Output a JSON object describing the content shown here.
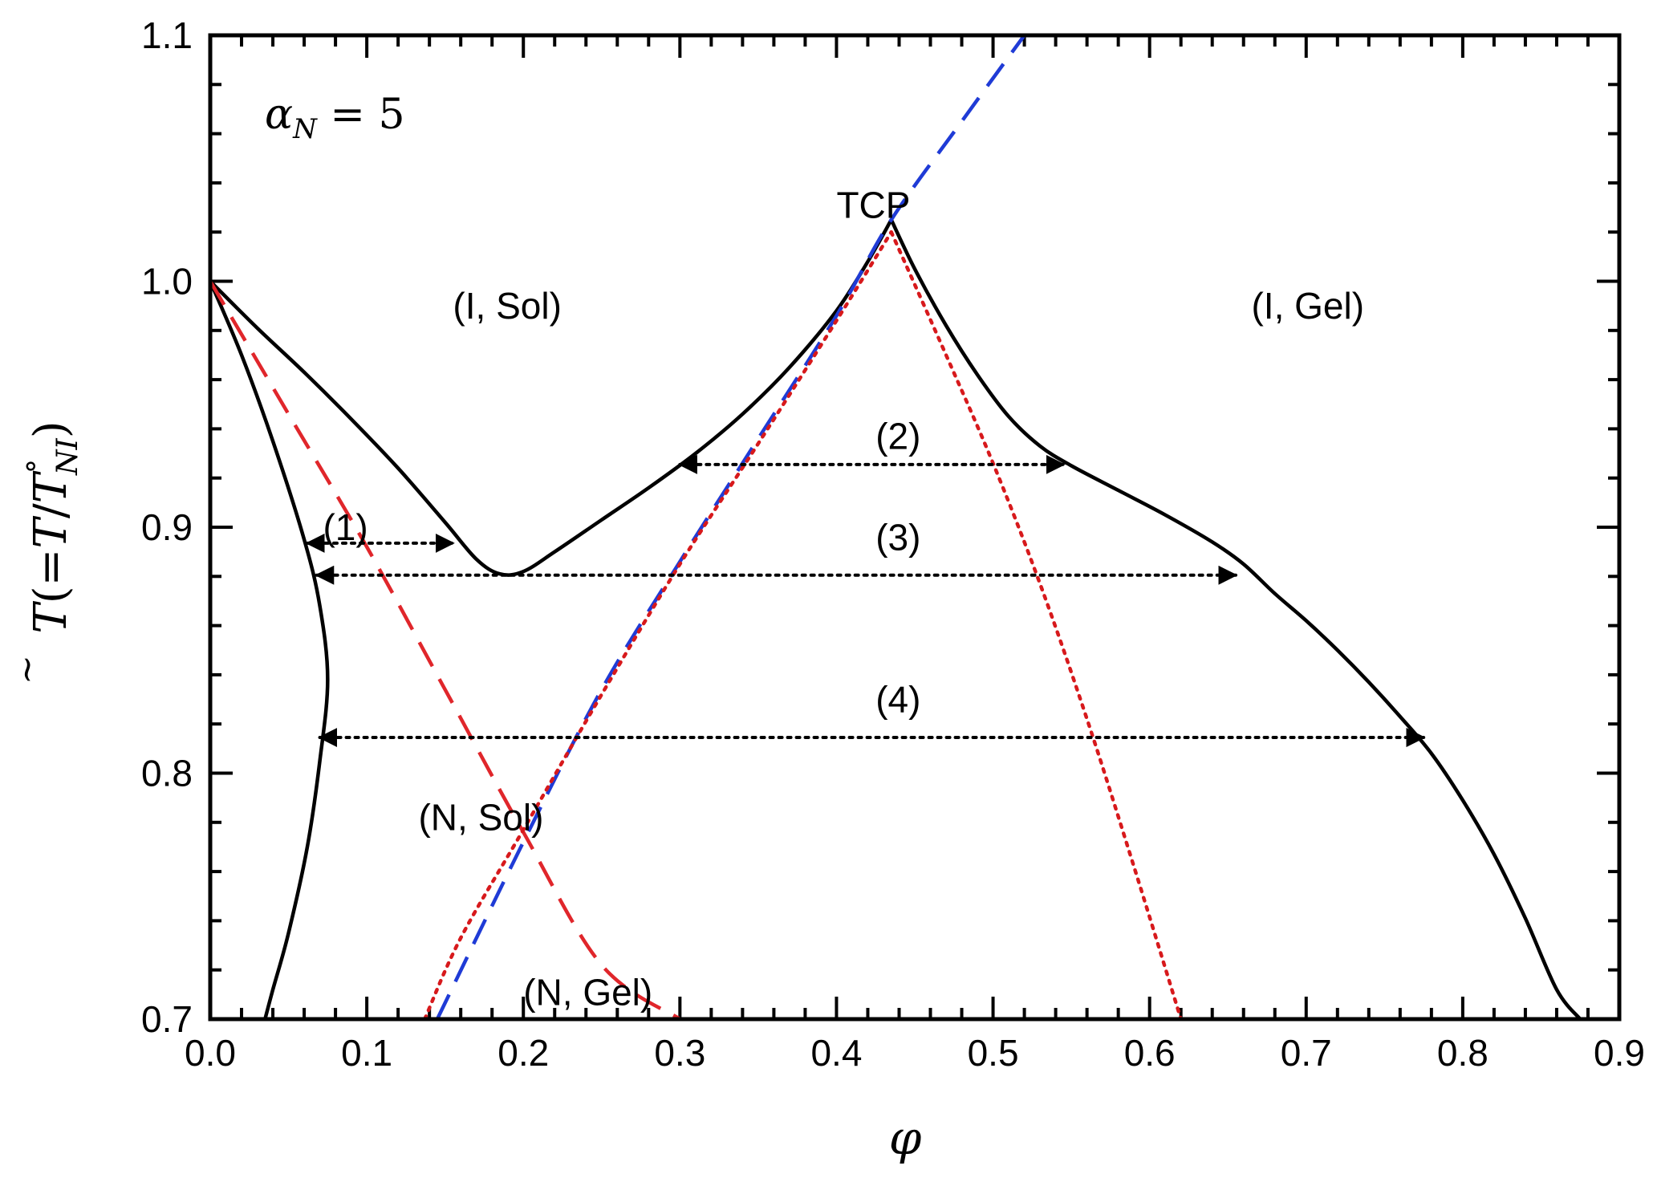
{
  "chart_data": {
    "type": "line",
    "title": "",
    "xlabel": "φ",
    "ylabel_parts": {
      "T": "T",
      "tilde": "~",
      "open": "(=",
      "T2": "T",
      "slash": "/",
      "T3": "T",
      "sup": "°",
      "sub": "NI",
      "close": ")"
    },
    "xlim": [
      0.0,
      0.9
    ],
    "ylim": [
      0.7,
      1.1
    ],
    "x_ticks": [
      "0.0",
      "0.1",
      "0.2",
      "0.3",
      "0.4",
      "0.5",
      "0.6",
      "0.7",
      "0.8",
      "0.9"
    ],
    "x_tick_values": [
      0.0,
      0.1,
      0.2,
      0.3,
      0.4,
      0.5,
      0.6,
      0.7,
      0.8,
      0.9
    ],
    "y_ticks": [
      "0.7",
      "0.8",
      "0.9",
      "1.0",
      "1.1"
    ],
    "y_tick_values": [
      0.7,
      0.8,
      0.9,
      1.0,
      1.1
    ],
    "parameter": {
      "symbol": "α",
      "sub": "N",
      "eq": " = 5"
    },
    "colors": {
      "axis": "#000000",
      "solid": "#000000",
      "red_dash": "#e0262b",
      "blue_dash": "#1f3bd6",
      "red_dot": "#d7191c",
      "arrow": "#000000"
    },
    "series": [
      {
        "name": "binodal-left-sol-branch",
        "style": "solid",
        "x": [
          0.0,
          0.02,
          0.04,
          0.06,
          0.07,
          0.075,
          0.07,
          0.062,
          0.05,
          0.04,
          0.035
        ],
        "y": [
          1.0,
          0.97,
          0.935,
          0.895,
          0.868,
          0.838,
          0.805,
          0.77,
          0.735,
          0.712,
          0.7
        ]
      },
      {
        "name": "binodal-isotropic-left",
        "style": "solid",
        "x": [
          0.0,
          0.03,
          0.06,
          0.09,
          0.12,
          0.15,
          0.17,
          0.185,
          0.2,
          0.22,
          0.25,
          0.28,
          0.31,
          0.34,
          0.37,
          0.4,
          0.42,
          0.435
        ],
        "y": [
          1.0,
          0.981,
          0.963,
          0.944,
          0.924,
          0.902,
          0.887,
          0.881,
          0.882,
          0.89,
          0.903,
          0.916,
          0.93,
          0.946,
          0.965,
          0.988,
          1.008,
          1.025
        ]
      },
      {
        "name": "binodal-isotropic-right",
        "style": "solid",
        "x": [
          0.435,
          0.45,
          0.47,
          0.49,
          0.51,
          0.53,
          0.55,
          0.58,
          0.61,
          0.64,
          0.66,
          0.68,
          0.7,
          0.72,
          0.74,
          0.76,
          0.78,
          0.8,
          0.82,
          0.84,
          0.86,
          0.875
        ],
        "y": [
          1.025,
          1.005,
          0.982,
          0.962,
          0.945,
          0.933,
          0.925,
          0.915,
          0.905,
          0.894,
          0.885,
          0.873,
          0.862,
          0.85,
          0.837,
          0.823,
          0.808,
          0.789,
          0.767,
          0.741,
          0.712,
          0.7
        ]
      },
      {
        "name": "red-dashed-spinodal",
        "style": "dashed-red",
        "x": [
          0.0,
          0.05,
          0.1,
          0.15,
          0.2,
          0.25,
          0.3
        ],
        "y": [
          1.0,
          0.946,
          0.892,
          0.834,
          0.776,
          0.722,
          0.7
        ]
      },
      {
        "name": "blue-dashed-line",
        "style": "dashed-blue",
        "x": [
          0.145,
          0.2,
          0.25,
          0.3,
          0.35,
          0.4,
          0.435,
          0.48,
          0.52
        ],
        "y": [
          0.7,
          0.772,
          0.834,
          0.886,
          0.936,
          0.986,
          1.025,
          1.065,
          1.1
        ]
      },
      {
        "name": "red-dotted-spinodal-left",
        "style": "dotted-red",
        "x": [
          0.137,
          0.16,
          0.2,
          0.25,
          0.3,
          0.35,
          0.4,
          0.435
        ],
        "y": [
          0.7,
          0.733,
          0.777,
          0.832,
          0.885,
          0.934,
          0.984,
          1.02
        ]
      },
      {
        "name": "red-dotted-spinodal-right",
        "style": "dotted-red",
        "x": [
          0.435,
          0.47,
          0.5,
          0.53,
          0.56,
          0.59,
          0.62
        ],
        "y": [
          1.02,
          0.97,
          0.926,
          0.877,
          0.822,
          0.762,
          0.7
        ]
      }
    ],
    "tie_lines": [
      {
        "label": "(1)",
        "x1": 0.062,
        "x2": 0.155,
        "y": 0.8935,
        "label_x": 0.072,
        "label_y": 0.9
      },
      {
        "label": "(2)",
        "x1": 0.3,
        "x2": 0.545,
        "y": 0.9255,
        "label_x": 0.425,
        "label_y": 0.937
      },
      {
        "label": "(3)",
        "x1": 0.068,
        "x2": 0.655,
        "y": 0.8805,
        "label_x": 0.425,
        "label_y": 0.896
      },
      {
        "label": "(4)",
        "x1": 0.07,
        "x2": 0.775,
        "y": 0.8145,
        "label_x": 0.425,
        "label_y": 0.83
      }
    ],
    "annotations": [
      {
        "text": "TCP",
        "x": 0.4,
        "y": 1.031
      },
      {
        "text": "(I, Sol)",
        "x": 0.155,
        "y": 0.99
      },
      {
        "text": "(I, Gel)",
        "x": 0.665,
        "y": 0.99
      },
      {
        "text": "(N, Sol)",
        "x": 0.133,
        "y": 0.782
      },
      {
        "text": "(N, Gel)",
        "x": 0.2,
        "y": 0.711
      }
    ]
  }
}
